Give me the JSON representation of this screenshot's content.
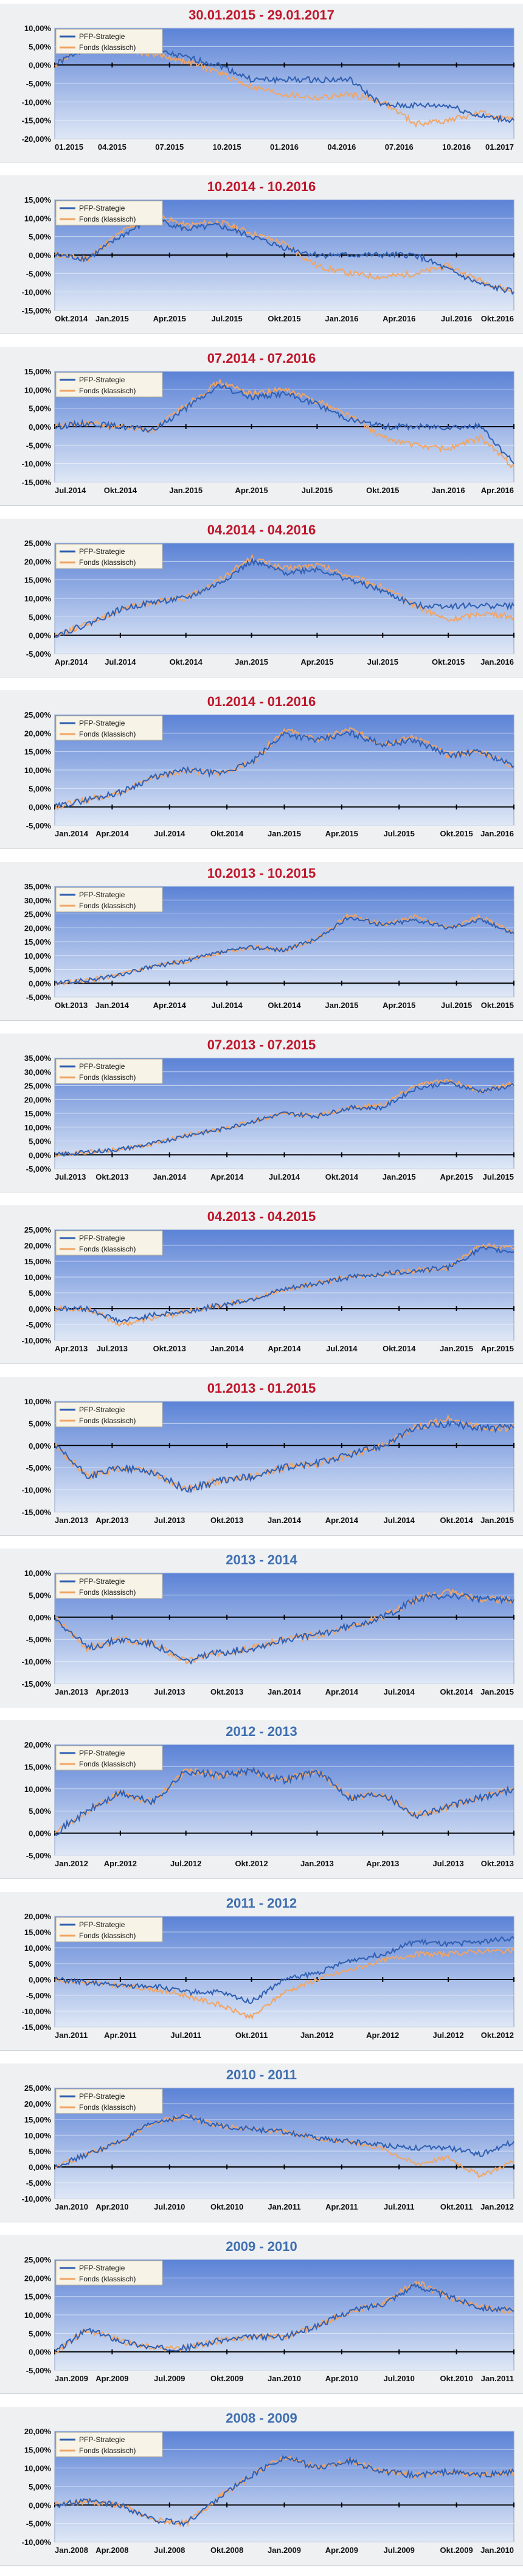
{
  "colors": {
    "title_dark_red": "#c0152a",
    "title_blue": "#3f6fb0",
    "series_pfp": "#2f5fb3",
    "series_fonds": "#f0a565",
    "plot_top": "#5b82d6",
    "plot_bottom": "#dfe8f6"
  },
  "legend": {
    "pfp": "PFP-Strategie",
    "fonds": "Fonds (klassisch)"
  },
  "chart_data": [
    {
      "type": "line",
      "title": "30.01.2015 - 29.01.2017",
      "title_color": "dark-red",
      "yticks": [
        "10,00%",
        "5,00%",
        "0,00%",
        "-5,00%",
        "-10,00%",
        "-15,00%",
        "-20,00%"
      ],
      "ylim": [
        -20,
        10
      ],
      "xticks": [
        "01.2015",
        "04.2015",
        "07.2015",
        "10.2015",
        "01.2016",
        "04.2016",
        "07.2016",
        "10.2016",
        "01.2017"
      ],
      "series": [
        {
          "name": "PFP-Strategie",
          "values": [
            0,
            5,
            6,
            4,
            2,
            0,
            -4,
            -4,
            -4,
            -4,
            -11,
            -11,
            -11,
            -14,
            -15
          ]
        },
        {
          "name": "Fonds (klassisch)",
          "values": [
            0,
            6,
            4,
            3,
            1,
            -2,
            -6,
            -8,
            -9,
            -8,
            -10,
            -16,
            -15,
            -13,
            -15
          ]
        }
      ]
    },
    {
      "type": "line",
      "title": "10.2014 - 10.2016",
      "title_color": "dark-red",
      "yticks": [
        "15,00%",
        "10,00%",
        "5,00%",
        "0,00%",
        "-5,00%",
        "-10,00%",
        "-15,00%"
      ],
      "ylim": [
        -15,
        15
      ],
      "xticks": [
        "Okt.2014",
        "Jan.2015",
        "Apr.2015",
        "Jul.2015",
        "Okt.2015",
        "Jan.2016",
        "Apr.2016",
        "Jul.2016",
        "Okt.2016"
      ],
      "series": [
        {
          "name": "PFP-Strategie",
          "values": [
            0,
            -1,
            5,
            10,
            7,
            8,
            5,
            2,
            0,
            0,
            0,
            0,
            -4,
            -8,
            -10
          ]
        },
        {
          "name": "Fonds (klassisch)",
          "values": [
            0,
            -1,
            6,
            11,
            8,
            9,
            6,
            3,
            -3,
            -5,
            -6,
            -5,
            -3,
            -7,
            -10
          ]
        }
      ]
    },
    {
      "type": "line",
      "title": "07.2014 - 07.2016",
      "title_color": "dark-red",
      "yticks": [
        "15,00%",
        "10,00%",
        "5,00%",
        "0,00%",
        "-5,00%",
        "-10,00%",
        "-15,00%"
      ],
      "ylim": [
        -15,
        15
      ],
      "xticks": [
        "Jul.2014",
        "Okt.2014",
        "Jan.2015",
        "Apr.2015",
        "Jul.2015",
        "Okt.2015",
        "Jan.2016",
        "Apr.2016"
      ],
      "series": [
        {
          "name": "PFP-Strategie",
          "values": [
            0,
            1,
            0,
            -1,
            5,
            11,
            8,
            9,
            6,
            2,
            0,
            0,
            0,
            0,
            -10
          ]
        },
        {
          "name": "Fonds (klassisch)",
          "values": [
            0,
            1,
            0,
            -1,
            6,
            12,
            9,
            10,
            7,
            3,
            -3,
            -5,
            -6,
            -3,
            -11
          ]
        }
      ]
    },
    {
      "type": "line",
      "title": "04.2014 - 04.2016",
      "title_color": "dark-red",
      "yticks": [
        "25,00%",
        "20,00%",
        "15,00%",
        "10,00%",
        "5,00%",
        "0,00%",
        "-5,00%"
      ],
      "ylim": [
        -5,
        25
      ],
      "xticks": [
        "Apr.2014",
        "Jul.2014",
        "Okt.2014",
        "Jan.2015",
        "Apr.2015",
        "Jul.2015",
        "Okt.2015",
        "Jan.2016"
      ],
      "series": [
        {
          "name": "PFP-Strategie",
          "values": [
            0,
            3,
            7,
            9,
            10,
            14,
            20,
            17,
            18,
            15,
            12,
            8,
            8,
            8,
            8
          ]
        },
        {
          "name": "Fonds (klassisch)",
          "values": [
            0,
            3,
            7,
            9,
            10,
            15,
            21,
            18,
            19,
            16,
            13,
            8,
            4,
            6,
            5
          ]
        }
      ]
    },
    {
      "type": "line",
      "title": "01.2014 - 01.2016",
      "title_color": "dark-red",
      "yticks": [
        "25,00%",
        "20,00%",
        "15,00%",
        "10,00%",
        "5,00%",
        "0,00%",
        "-5,00%"
      ],
      "ylim": [
        -5,
        25
      ],
      "xticks": [
        "Jan.2014",
        "Apr.2014",
        "Jul.2014",
        "Okt.2014",
        "Jan.2015",
        "Apr.2015",
        "Jul.2015",
        "Okt.2015",
        "Jan.2016"
      ],
      "series": [
        {
          "name": "PFP-Strategie",
          "values": [
            0,
            2,
            4,
            8,
            10,
            9,
            12,
            20,
            18,
            20,
            17,
            18,
            14,
            15,
            11
          ]
        },
        {
          "name": "Fonds (klassisch)",
          "values": [
            0,
            2,
            4,
            8,
            10,
            9,
            12,
            21,
            18,
            21,
            17,
            19,
            14,
            15,
            11
          ]
        }
      ]
    },
    {
      "type": "line",
      "title": "10.2013 - 10.2015",
      "title_color": "dark-red",
      "yticks": [
        "35,00%",
        "30,00%",
        "25,00%",
        "20,00%",
        "15,00%",
        "10,00%",
        "5,00%",
        "0,00%",
        "-5,00%"
      ],
      "ylim": [
        -5,
        35
      ],
      "xticks": [
        "Okt.2013",
        "Jan.2014",
        "Apr.2014",
        "Jul.2014",
        "Okt.2014",
        "Jan.2015",
        "Apr.2015",
        "Jul.2015",
        "Okt.2015"
      ],
      "series": [
        {
          "name": "PFP-Strategie",
          "values": [
            0,
            1,
            3,
            6,
            8,
            11,
            13,
            12,
            16,
            24,
            21,
            23,
            20,
            23,
            18
          ]
        },
        {
          "name": "Fonds (klassisch)",
          "values": [
            0,
            1,
            3,
            6,
            8,
            11,
            13,
            12,
            16,
            25,
            21,
            24,
            20,
            24,
            18
          ]
        }
      ]
    },
    {
      "type": "line",
      "title": "07.2013 - 07.2015",
      "title_color": "dark-red",
      "yticks": [
        "35,00%",
        "30,00%",
        "25,00%",
        "20,00%",
        "15,00%",
        "10,00%",
        "5,00%",
        "0,00%",
        "-5,00%"
      ],
      "ylim": [
        -5,
        35
      ],
      "xticks": [
        "Jul.2013",
        "Okt.2013",
        "Jan.2014",
        "Apr.2014",
        "Jul.2014",
        "Okt.2014",
        "Jan.2015",
        "Apr.2015",
        "Jul.2015"
      ],
      "series": [
        {
          "name": "PFP-Strategie",
          "values": [
            0,
            1,
            2,
            4,
            7,
            9,
            12,
            15,
            14,
            17,
            17,
            24,
            26,
            23,
            25
          ]
        },
        {
          "name": "Fonds (klassisch)",
          "values": [
            0,
            1,
            2,
            4,
            7,
            9,
            12,
            15,
            14,
            17,
            18,
            25,
            27,
            23,
            26
          ]
        }
      ]
    },
    {
      "type": "line",
      "title": "04.2013 - 04.2015",
      "title_color": "dark-red",
      "yticks": [
        "25,00%",
        "20,00%",
        "15,00%",
        "10,00%",
        "5,00%",
        "0,00%",
        "-5,00%",
        "-10,00%"
      ],
      "ylim": [
        -10,
        25
      ],
      "xticks": [
        "Apr.2013",
        "Jul.2013",
        "Okt.2013",
        "Jan.2014",
        "Apr.2014",
        "Jul.2014",
        "Okt.2014",
        "Jan.2015",
        "Apr.2015"
      ],
      "series": [
        {
          "name": "PFP-Strategie",
          "values": [
            0,
            0,
            -4,
            -2,
            -1,
            1,
            3,
            6,
            8,
            10,
            11,
            12,
            13,
            19,
            18
          ]
        },
        {
          "name": "Fonds (klassisch)",
          "values": [
            0,
            0,
            -5,
            -3,
            -1,
            1,
            3,
            6,
            8,
            10,
            11,
            12,
            13,
            20,
            19
          ]
        }
      ]
    },
    {
      "type": "line",
      "title": "01.2013 - 01.2015",
      "title_color": "dark-red",
      "yticks": [
        "10,00%",
        "5,00%",
        "0,00%",
        "-5,00%",
        "-10,00%",
        "-15,00%"
      ],
      "ylim": [
        -15,
        10
      ],
      "xticks": [
        "Jan.2013",
        "Apr.2013",
        "Jul.2013",
        "Okt.2013",
        "Jan.2014",
        "Apr.2014",
        "Jul.2014",
        "Okt.2014",
        "Jan.2015"
      ],
      "series": [
        {
          "name": "PFP-Strategie",
          "values": [
            0,
            -7,
            -5,
            -6,
            -10,
            -8,
            -7,
            -5,
            -4,
            -2,
            0,
            4,
            5,
            4,
            4
          ]
        },
        {
          "name": "Fonds (klassisch)",
          "values": [
            0,
            -7,
            -5,
            -6,
            -10,
            -8,
            -7,
            -5,
            -4,
            -2,
            0,
            4,
            6,
            4,
            4
          ]
        }
      ]
    },
    {
      "type": "line",
      "title": "2013 - 2014",
      "title_color": "blue",
      "yticks": [
        "10,00%",
        "5,00%",
        "0,00%",
        "-5,00%",
        "-10,00%",
        "-15,00%"
      ],
      "ylim": [
        -15,
        10
      ],
      "xticks": [
        "Jan.2013",
        "Apr.2013",
        "Jul.2013",
        "Okt.2013",
        "Jan.2014",
        "Apr.2014",
        "Jul.2014",
        "Okt.2014",
        "Jan.2015"
      ],
      "series": [
        {
          "name": "PFP-Strategie",
          "values": [
            0,
            -7,
            -5,
            -6,
            -10,
            -8,
            -7,
            -5,
            -4,
            -2,
            0,
            4,
            5,
            4,
            4
          ]
        },
        {
          "name": "Fonds (klassisch)",
          "values": [
            0,
            -7,
            -5,
            -6,
            -10,
            -8,
            -7,
            -5,
            -4,
            -2,
            0,
            4,
            6,
            4,
            4
          ]
        }
      ]
    },
    {
      "type": "line",
      "title": "2012 - 2013",
      "title_color": "blue",
      "yticks": [
        "20,00%",
        "15,00%",
        "10,00%",
        "5,00%",
        "0,00%",
        "-5,00%"
      ],
      "ylim": [
        -5,
        20
      ],
      "xticks": [
        "Jan.2012",
        "Apr.2012",
        "Jul.2012",
        "Okt.2012",
        "Jan.2013",
        "Apr.2013",
        "Jul.2013",
        "Okt.2013"
      ],
      "series": [
        {
          "name": "PFP-Strategie",
          "values": [
            0,
            5,
            9,
            7,
            14,
            13,
            14,
            12,
            14,
            8,
            9,
            4,
            6,
            8,
            10
          ]
        },
        {
          "name": "Fonds (klassisch)",
          "values": [
            0,
            5,
            9,
            7,
            14,
            13,
            14,
            12,
            14,
            8,
            9,
            4,
            6,
            8,
            10
          ]
        }
      ]
    },
    {
      "type": "line",
      "title": "2011 - 2012",
      "title_color": "blue",
      "yticks": [
        "20,00%",
        "15,00%",
        "10,00%",
        "5,00%",
        "0,00%",
        "-5,00%",
        "-10,00%",
        "-15,00%"
      ],
      "ylim": [
        -15,
        20
      ],
      "xticks": [
        "Jan.2011",
        "Apr.2011",
        "Jul.2011",
        "Okt.2011",
        "Jan.2012",
        "Apr.2012",
        "Jul.2012",
        "Okt.2012"
      ],
      "series": [
        {
          "name": "PFP-Strategie",
          "values": [
            0,
            -1,
            -2,
            -2,
            -4,
            -4,
            -7,
            0,
            2,
            6,
            8,
            12,
            11,
            12,
            13
          ]
        },
        {
          "name": "Fonds (klassisch)",
          "values": [
            0,
            -1,
            -2,
            -3,
            -5,
            -8,
            -12,
            -4,
            0,
            3,
            6,
            8,
            8,
            9,
            9
          ]
        }
      ]
    },
    {
      "type": "line",
      "title": "2010 - 2011",
      "title_color": "blue",
      "yticks": [
        "25,00%",
        "20,00%",
        "15,00%",
        "10,00%",
        "5,00%",
        "0,00%",
        "-5,00%",
        "-10,00%"
      ],
      "ylim": [
        -10,
        25
      ],
      "xticks": [
        "Jan.2010",
        "Apr.2010",
        "Jul.2010",
        "Okt.2010",
        "Jan.2011",
        "Apr.2011",
        "Jul.2011",
        "Okt.2011",
        "Jan.2012"
      ],
      "series": [
        {
          "name": "PFP-Strategie",
          "values": [
            0,
            4,
            8,
            14,
            16,
            13,
            12,
            11,
            9,
            8,
            7,
            6,
            6,
            4,
            8
          ]
        },
        {
          "name": "Fonds (klassisch)",
          "values": [
            0,
            4,
            8,
            14,
            16,
            13,
            12,
            11,
            9,
            8,
            6,
            1,
            3,
            -3,
            2
          ]
        }
      ]
    },
    {
      "type": "line",
      "title": "2009 - 2010",
      "title_color": "blue",
      "yticks": [
        "25,00%",
        "20,00%",
        "15,00%",
        "10,00%",
        "5,00%",
        "0,00%",
        "-5,00%"
      ],
      "ylim": [
        -5,
        25
      ],
      "xticks": [
        "Jan.2009",
        "Apr.2009",
        "Jul.2009",
        "Okt.2009",
        "Jan.2010",
        "Apr.2010",
        "Jul.2010",
        "Okt.2010",
        "Jan.2011"
      ],
      "series": [
        {
          "name": "PFP-Strategie",
          "values": [
            0,
            6,
            3,
            1,
            1,
            3,
            4,
            4,
            7,
            11,
            13,
            18,
            15,
            12,
            11
          ]
        },
        {
          "name": "Fonds (klassisch)",
          "values": [
            0,
            6,
            3,
            1,
            1,
            3,
            4,
            4,
            7,
            11,
            13,
            19,
            15,
            12,
            11
          ]
        }
      ]
    },
    {
      "type": "line",
      "title": "2008 - 2009",
      "title_color": "blue",
      "yticks": [
        "20,00%",
        "15,00%",
        "10,00%",
        "5,00%",
        "0,00%",
        "-5,00%",
        "-10,00%"
      ],
      "ylim": [
        -10,
        20
      ],
      "xticks": [
        "Jan.2008",
        "Apr.2008",
        "Jul.2008",
        "Okt.2008",
        "Jan.2009",
        "Apr.2009",
        "Jul.2009",
        "Okt.2009",
        "Jan.2010"
      ],
      "series": [
        {
          "name": "PFP-Strategie",
          "values": [
            0,
            1,
            0,
            -4,
            -5,
            2,
            8,
            13,
            10,
            12,
            9,
            8,
            9,
            8,
            9
          ]
        },
        {
          "name": "Fonds (klassisch)",
          "values": [
            0,
            1,
            0,
            -4,
            -5,
            2,
            8,
            13,
            10,
            12,
            9,
            8,
            9,
            8,
            9
          ]
        }
      ]
    }
  ]
}
